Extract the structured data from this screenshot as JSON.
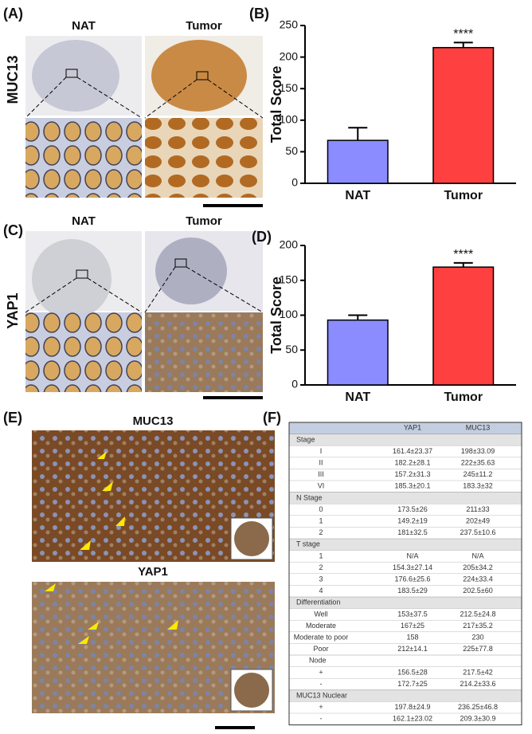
{
  "panel_labels": [
    "(A)",
    "(B)",
    "(C)",
    "(D)",
    "(E)",
    "(F)"
  ],
  "panel_a": {
    "row_label": "MUC13",
    "col_labels": [
      "NAT",
      "Tumor"
    ]
  },
  "panel_c": {
    "row_label": "YAP1",
    "col_labels": [
      "NAT",
      "Tumor"
    ]
  },
  "panel_e": {
    "titles": [
      "MUC13",
      "YAP1"
    ]
  },
  "chart_data": [
    {
      "type": "bar",
      "y_label": "Total Score",
      "categories": [
        "NAT",
        "Tumor"
      ],
      "values": [
        68,
        215
      ],
      "errors": [
        20,
        8
      ],
      "colors": [
        "#8a8cff",
        "#ff4040"
      ],
      "significance": [
        null,
        "****"
      ],
      "ylim": [
        0,
        250
      ],
      "yticks": [
        0,
        50,
        100,
        150,
        200,
        250
      ]
    },
    {
      "type": "bar",
      "y_label": "Total Score",
      "categories": [
        "NAT",
        "Tumor"
      ],
      "values": [
        93,
        169
      ],
      "errors": [
        7,
        6
      ],
      "colors": [
        "#8a8cff",
        "#ff4040"
      ],
      "significance": [
        null,
        "****"
      ],
      "ylim": [
        0,
        200
      ],
      "yticks": [
        0,
        50,
        100,
        150,
        200
      ]
    }
  ],
  "table": {
    "columns": [
      "YAP1",
      "MUC13"
    ],
    "sections": [
      {
        "name": "Stage",
        "shaded": true,
        "rows": [
          [
            "I",
            "161.4±23.37",
            "198±33.09"
          ],
          [
            "II",
            "182.2±28.1",
            "222±35.63"
          ],
          [
            "III",
            "157.2±31.3",
            "245±11.2"
          ],
          [
            "VI",
            "185.3±20.1",
            "183.3±32"
          ]
        ]
      },
      {
        "name": "N Stage",
        "shaded": true,
        "rows": [
          [
            "0",
            "173.5±26",
            "211±33"
          ],
          [
            "1",
            "149.2±19",
            "202±49"
          ],
          [
            "2",
            "181±32.5",
            "237.5±10.6"
          ]
        ]
      },
      {
        "name": "T stage",
        "shaded": true,
        "rows": [
          [
            "1",
            "N/A",
            "N/A"
          ],
          [
            "2",
            "154.3±27.14",
            "205±34.2"
          ],
          [
            "3",
            "176.6±25.6",
            "224±33.4"
          ],
          [
            "4",
            "183.5±29",
            "202.5±60"
          ]
        ]
      },
      {
        "name": "Differentiation",
        "shaded": true,
        "rows": [
          [
            "Well",
            "153±37.5",
            "212.5±24.8"
          ],
          [
            "Moderate",
            "167±25",
            "217±35.2"
          ],
          [
            "Moderate to poor",
            "158",
            "230"
          ],
          [
            "Poor",
            "212±14.1",
            "225±77.8"
          ]
        ]
      },
      {
        "name": "Node",
        "shaded": false,
        "rows": [
          [
            "+",
            "156.5±28",
            "217.5±42"
          ],
          [
            "-",
            "172.7±25",
            "214.2±33.6"
          ]
        ]
      },
      {
        "name": "MUC13 Nuclear",
        "shaded": true,
        "rows": [
          [
            "+",
            "197.8±24.9",
            "236.25±46.8"
          ],
          [
            "-",
            "162.1±23.02",
            "209.3±30.9"
          ]
        ]
      }
    ]
  }
}
